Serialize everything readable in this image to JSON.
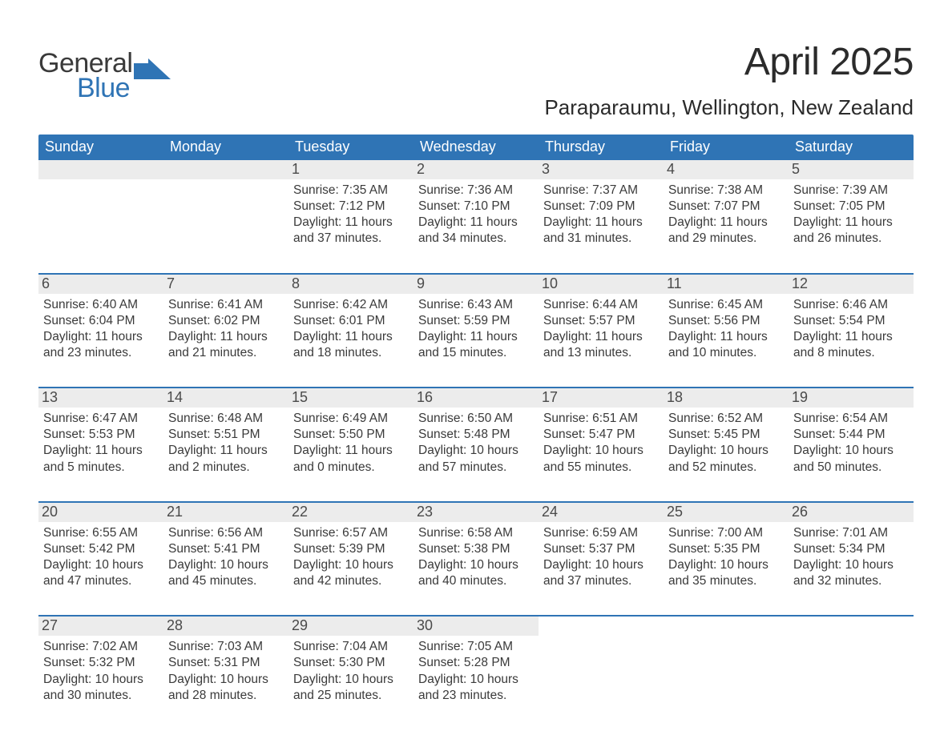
{
  "brand": {
    "line1": "General",
    "line2": "Blue",
    "accent_color": "#2f74b5",
    "text_color": "#3a3a3a"
  },
  "title": "April 2025",
  "subtitle": "Paraparaumu, Wellington, New Zealand",
  "colors": {
    "header_bg": "#2f74b5",
    "header_text": "#ffffff",
    "daynum_bg": "#ececec",
    "daynum_text": "#4a4a4a",
    "body_text": "#3a3a3a",
    "row_border": "#2f74b5",
    "page_bg": "#ffffff"
  },
  "day_labels": [
    "Sunday",
    "Monday",
    "Tuesday",
    "Wednesday",
    "Thursday",
    "Friday",
    "Saturday"
  ],
  "weeks": [
    [
      {
        "empty": true
      },
      {
        "empty": true
      },
      {
        "day": "1",
        "sunrise": "Sunrise: 7:35 AM",
        "sunset": "Sunset: 7:12 PM",
        "dl1": "Daylight: 11 hours",
        "dl2": "and 37 minutes."
      },
      {
        "day": "2",
        "sunrise": "Sunrise: 7:36 AM",
        "sunset": "Sunset: 7:10 PM",
        "dl1": "Daylight: 11 hours",
        "dl2": "and 34 minutes."
      },
      {
        "day": "3",
        "sunrise": "Sunrise: 7:37 AM",
        "sunset": "Sunset: 7:09 PM",
        "dl1": "Daylight: 11 hours",
        "dl2": "and 31 minutes."
      },
      {
        "day": "4",
        "sunrise": "Sunrise: 7:38 AM",
        "sunset": "Sunset: 7:07 PM",
        "dl1": "Daylight: 11 hours",
        "dl2": "and 29 minutes."
      },
      {
        "day": "5",
        "sunrise": "Sunrise: 7:39 AM",
        "sunset": "Sunset: 7:05 PM",
        "dl1": "Daylight: 11 hours",
        "dl2": "and 26 minutes."
      }
    ],
    [
      {
        "day": "6",
        "sunrise": "Sunrise: 6:40 AM",
        "sunset": "Sunset: 6:04 PM",
        "dl1": "Daylight: 11 hours",
        "dl2": "and 23 minutes."
      },
      {
        "day": "7",
        "sunrise": "Sunrise: 6:41 AM",
        "sunset": "Sunset: 6:02 PM",
        "dl1": "Daylight: 11 hours",
        "dl2": "and 21 minutes."
      },
      {
        "day": "8",
        "sunrise": "Sunrise: 6:42 AM",
        "sunset": "Sunset: 6:01 PM",
        "dl1": "Daylight: 11 hours",
        "dl2": "and 18 minutes."
      },
      {
        "day": "9",
        "sunrise": "Sunrise: 6:43 AM",
        "sunset": "Sunset: 5:59 PM",
        "dl1": "Daylight: 11 hours",
        "dl2": "and 15 minutes."
      },
      {
        "day": "10",
        "sunrise": "Sunrise: 6:44 AM",
        "sunset": "Sunset: 5:57 PM",
        "dl1": "Daylight: 11 hours",
        "dl2": "and 13 minutes."
      },
      {
        "day": "11",
        "sunrise": "Sunrise: 6:45 AM",
        "sunset": "Sunset: 5:56 PM",
        "dl1": "Daylight: 11 hours",
        "dl2": "and 10 minutes."
      },
      {
        "day": "12",
        "sunrise": "Sunrise: 6:46 AM",
        "sunset": "Sunset: 5:54 PM",
        "dl1": "Daylight: 11 hours",
        "dl2": "and 8 minutes."
      }
    ],
    [
      {
        "day": "13",
        "sunrise": "Sunrise: 6:47 AM",
        "sunset": "Sunset: 5:53 PM",
        "dl1": "Daylight: 11 hours",
        "dl2": "and 5 minutes."
      },
      {
        "day": "14",
        "sunrise": "Sunrise: 6:48 AM",
        "sunset": "Sunset: 5:51 PM",
        "dl1": "Daylight: 11 hours",
        "dl2": "and 2 minutes."
      },
      {
        "day": "15",
        "sunrise": "Sunrise: 6:49 AM",
        "sunset": "Sunset: 5:50 PM",
        "dl1": "Daylight: 11 hours",
        "dl2": "and 0 minutes."
      },
      {
        "day": "16",
        "sunrise": "Sunrise: 6:50 AM",
        "sunset": "Sunset: 5:48 PM",
        "dl1": "Daylight: 10 hours",
        "dl2": "and 57 minutes."
      },
      {
        "day": "17",
        "sunrise": "Sunrise: 6:51 AM",
        "sunset": "Sunset: 5:47 PM",
        "dl1": "Daylight: 10 hours",
        "dl2": "and 55 minutes."
      },
      {
        "day": "18",
        "sunrise": "Sunrise: 6:52 AM",
        "sunset": "Sunset: 5:45 PM",
        "dl1": "Daylight: 10 hours",
        "dl2": "and 52 minutes."
      },
      {
        "day": "19",
        "sunrise": "Sunrise: 6:54 AM",
        "sunset": "Sunset: 5:44 PM",
        "dl1": "Daylight: 10 hours",
        "dl2": "and 50 minutes."
      }
    ],
    [
      {
        "day": "20",
        "sunrise": "Sunrise: 6:55 AM",
        "sunset": "Sunset: 5:42 PM",
        "dl1": "Daylight: 10 hours",
        "dl2": "and 47 minutes."
      },
      {
        "day": "21",
        "sunrise": "Sunrise: 6:56 AM",
        "sunset": "Sunset: 5:41 PM",
        "dl1": "Daylight: 10 hours",
        "dl2": "and 45 minutes."
      },
      {
        "day": "22",
        "sunrise": "Sunrise: 6:57 AM",
        "sunset": "Sunset: 5:39 PM",
        "dl1": "Daylight: 10 hours",
        "dl2": "and 42 minutes."
      },
      {
        "day": "23",
        "sunrise": "Sunrise: 6:58 AM",
        "sunset": "Sunset: 5:38 PM",
        "dl1": "Daylight: 10 hours",
        "dl2": "and 40 minutes."
      },
      {
        "day": "24",
        "sunrise": "Sunrise: 6:59 AM",
        "sunset": "Sunset: 5:37 PM",
        "dl1": "Daylight: 10 hours",
        "dl2": "and 37 minutes."
      },
      {
        "day": "25",
        "sunrise": "Sunrise: 7:00 AM",
        "sunset": "Sunset: 5:35 PM",
        "dl1": "Daylight: 10 hours",
        "dl2": "and 35 minutes."
      },
      {
        "day": "26",
        "sunrise": "Sunrise: 7:01 AM",
        "sunset": "Sunset: 5:34 PM",
        "dl1": "Daylight: 10 hours",
        "dl2": "and 32 minutes."
      }
    ],
    [
      {
        "day": "27",
        "sunrise": "Sunrise: 7:02 AM",
        "sunset": "Sunset: 5:32 PM",
        "dl1": "Daylight: 10 hours",
        "dl2": "and 30 minutes."
      },
      {
        "day": "28",
        "sunrise": "Sunrise: 7:03 AM",
        "sunset": "Sunset: 5:31 PM",
        "dl1": "Daylight: 10 hours",
        "dl2": "and 28 minutes."
      },
      {
        "day": "29",
        "sunrise": "Sunrise: 7:04 AM",
        "sunset": "Sunset: 5:30 PM",
        "dl1": "Daylight: 10 hours",
        "dl2": "and 25 minutes."
      },
      {
        "day": "30",
        "sunrise": "Sunrise: 7:05 AM",
        "sunset": "Sunset: 5:28 PM",
        "dl1": "Daylight: 10 hours",
        "dl2": "and 23 minutes."
      },
      {
        "empty": true
      },
      {
        "empty": true
      },
      {
        "empty": true
      }
    ]
  ]
}
